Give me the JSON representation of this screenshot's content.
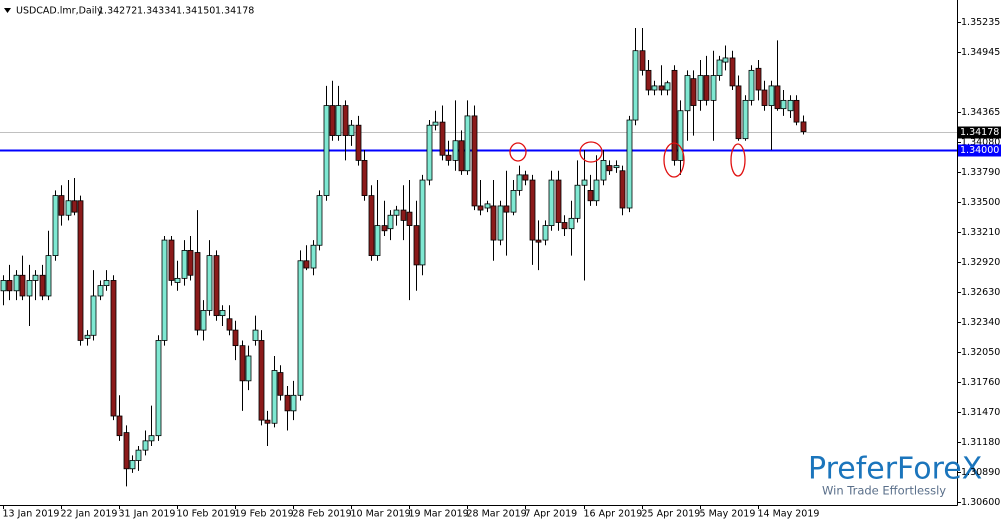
{
  "chart_data": {
    "type": "candlestick",
    "title": "USDCAD.lmr,Daily",
    "ohlc_labels": [
      "1.34272",
      "1.34334",
      "1.34150",
      "1.34178"
    ],
    "categories": [
      "13 Jan 2019",
      null,
      null,
      null,
      null,
      null,
      null,
      null,
      null,
      "22 Jan 2019",
      null,
      null,
      null,
      null,
      null,
      null,
      null,
      null,
      "31 Jan 2019",
      null,
      null,
      null,
      null,
      null,
      null,
      null,
      null,
      "10 Feb 2019",
      null,
      null,
      null,
      null,
      null,
      null,
      null,
      null,
      "19 Feb 2019",
      null,
      null,
      null,
      null,
      null,
      null,
      null,
      null,
      "28 Feb 2019",
      null,
      null,
      null,
      null,
      null,
      null,
      null,
      null,
      "10 Mar 2019",
      null,
      null,
      null,
      null,
      null,
      null,
      null,
      null,
      "19 Mar 2019",
      null,
      null,
      null,
      null,
      null,
      null,
      null,
      null,
      "28 Mar 2019",
      null,
      null,
      null,
      null,
      null,
      null,
      null,
      null,
      "7 Apr 2019",
      null,
      null,
      null,
      null,
      null,
      null,
      null,
      null,
      "16 Apr 2019",
      null,
      null,
      null,
      null,
      null,
      null,
      null,
      null,
      "25 Apr 2019",
      null,
      null,
      null,
      null,
      null,
      null,
      null,
      null,
      "5 May 2019",
      null,
      null,
      null,
      null,
      null,
      null,
      null,
      null,
      "14 May 2019",
      null,
      null,
      null,
      null,
      null,
      null,
      null
    ],
    "open": [
      1.3264,
      1.3274,
      1.3264,
      1.3279,
      1.3259,
      1.3274,
      1.3279,
      1.3259,
      1.3298,
      1.3356,
      1.3337,
      1.3351,
      1.3351,
      1.3218,
      1.3221,
      1.3259,
      1.3269,
      1.3274,
      1.3143,
      1.3127,
      1.3092,
      1.31,
      1.311,
      1.3119,
      1.3124,
      1.3216,
      1.3313,
      1.3272,
      1.3276,
      1.3303,
      1.3301,
      1.3226,
      1.3245,
      1.3298,
      1.324,
      1.3237,
      1.3226,
      1.3211,
      1.3177,
      1.3216,
      1.3216,
      1.3139,
      1.3136,
      1.3185,
      1.3163,
      1.3148,
      1.3163,
      1.3293,
      1.3286,
      1.3308,
      1.3356,
      1.3443,
      1.3414,
      1.3443,
      1.3414,
      1.3424,
      1.339,
      1.3356,
      1.3298,
      1.3327,
      1.3324,
      1.3337,
      1.3342,
      1.334,
      1.3327,
      1.3289,
      1.3371,
      1.3424,
      1.3427,
      1.3395,
      1.339,
      1.3409,
      1.338,
      1.3433,
      1.3346,
      1.3344,
      1.3346,
      1.3313,
      1.3346,
      1.334,
      1.3361,
      1.3376,
      1.3371,
      1.3313,
      1.3313,
      1.3327,
      1.3371,
      1.333,
      1.3324,
      1.3334,
      1.3366,
      1.3361,
      1.3351,
      1.3371,
      1.3385,
      1.3383,
      1.338,
      1.3344,
      1.3429,
      1.3496,
      1.3477,
      1.3458,
      1.3462,
      1.3458,
      1.3477,
      1.339,
      1.3438,
      1.3469,
      1.3448,
      1.3472,
      1.3448,
      1.3472,
      1.3485,
      1.3489,
      1.3462,
      1.3411,
      1.3448,
      1.3479,
      1.3458,
      1.3443,
      1.3462,
      1.344,
      1.3438,
      1.3448,
      1.34272
    ],
    "high": [
      1.3279,
      1.3289,
      1.3284,
      1.3298,
      1.3289,
      1.3284,
      1.3289,
      1.3322,
      1.3361,
      1.3366,
      1.3371,
      1.3373,
      1.3356,
      1.3226,
      1.3284,
      1.3274,
      1.3284,
      1.3279,
      1.3163,
      1.3134,
      1.3105,
      1.3114,
      1.3129,
      1.3153,
      1.3221,
      1.3317,
      1.3317,
      1.3293,
      1.3313,
      1.3317,
      1.3342,
      1.3255,
      1.3313,
      1.3303,
      1.325,
      1.325,
      1.3235,
      1.3216,
      1.3211,
      1.324,
      1.3226,
      1.3148,
      1.3201,
      1.3192,
      1.3172,
      1.3177,
      1.3303,
      1.3308,
      1.3313,
      1.3361,
      1.3462,
      1.3467,
      1.3462,
      1.3448,
      1.3429,
      1.3433,
      1.34,
      1.3366,
      1.3371,
      1.3351,
      1.3342,
      1.3346,
      1.3366,
      1.3371,
      1.3351,
      1.3376,
      1.3429,
      1.3438,
      1.3443,
      1.3409,
      1.3448,
      1.3419,
      1.3448,
      1.3443,
      1.3371,
      1.3351,
      1.3371,
      1.3351,
      1.338,
      1.3371,
      1.3385,
      1.338,
      1.3376,
      1.3332,
      1.3332,
      1.338,
      1.338,
      1.3337,
      1.3351,
      1.339,
      1.34,
      1.3376,
      1.3395,
      1.34,
      1.339,
      1.339,
      1.3385,
      1.3433,
      1.3518,
      1.3518,
      1.3487,
      1.3467,
      1.3482,
      1.3467,
      1.3482,
      1.3448,
      1.3477,
      1.3477,
      1.3487,
      1.3491,
      1.3496,
      1.3491,
      1.3501,
      1.3496,
      1.3472,
      1.3453,
      1.3482,
      1.3487,
      1.3467,
      1.3467,
      1.3506,
      1.3458,
      1.3453,
      1.3453,
      1.34334
    ],
    "low": [
      1.325,
      1.3255,
      1.3255,
      1.3255,
      1.323,
      1.3255,
      1.3255,
      1.3255,
      1.3293,
      1.3327,
      1.3332,
      1.3337,
      1.3211,
      1.3211,
      1.3216,
      1.3255,
      1.3264,
      1.3139,
      1.3119,
      1.3075,
      1.3088,
      1.309,
      1.3105,
      1.3114,
      1.3119,
      1.3211,
      1.3269,
      1.3264,
      1.3269,
      1.3274,
      1.3221,
      1.3216,
      1.324,
      1.3235,
      1.323,
      1.3221,
      1.3197,
      1.3148,
      1.3168,
      1.3211,
      1.3134,
      1.3114,
      1.3132,
      1.3158,
      1.3129,
      1.3139,
      1.3158,
      1.3284,
      1.3279,
      1.3303,
      1.3351,
      1.3409,
      1.3409,
      1.339,
      1.3404,
      1.3385,
      1.3351,
      1.3293,
      1.3293,
      1.3317,
      1.3313,
      1.3327,
      1.3313,
      1.3255,
      1.3264,
      1.3279,
      1.3366,
      1.3419,
      1.339,
      1.3385,
      1.338,
      1.3376,
      1.3376,
      1.3342,
      1.3337,
      1.334,
      1.3293,
      1.3308,
      1.3298,
      1.3337,
      1.3356,
      1.3366,
      1.3289,
      1.3284,
      1.3308,
      1.3322,
      1.3322,
      1.3317,
      1.3298,
      1.333,
      1.3274,
      1.3346,
      1.3346,
      1.3366,
      1.3376,
      1.3378,
      1.3337,
      1.334,
      1.3424,
      1.3472,
      1.3453,
      1.3453,
      1.3453,
      1.3453,
      1.3385,
      1.3376,
      1.3409,
      1.3414,
      1.3438,
      1.3443,
      1.3409,
      1.3467,
      1.3477,
      1.3458,
      1.3409,
      1.3409,
      1.3443,
      1.3448,
      1.3438,
      1.34,
      1.3438,
      1.3433,
      1.3431,
      1.3424,
      1.3415
    ],
    "close": [
      1.3274,
      1.3264,
      1.3279,
      1.3259,
      1.3274,
      1.3279,
      1.3259,
      1.3298,
      1.3356,
      1.3337,
      1.3351,
      1.334,
      1.3216,
      1.3221,
      1.3259,
      1.3269,
      1.3274,
      1.3143,
      1.3124,
      1.3092,
      1.31,
      1.311,
      1.3119,
      1.3124,
      1.3216,
      1.3313,
      1.3274,
      1.3276,
      1.3303,
      1.3279,
      1.3226,
      1.3245,
      1.3298,
      1.324,
      1.3245,
      1.3226,
      1.3211,
      1.3177,
      1.3201,
      1.3226,
      1.3139,
      1.3136,
      1.3187,
      1.3163,
      1.3148,
      1.3163,
      1.3293,
      1.3286,
      1.3308,
      1.3356,
      1.3443,
      1.3414,
      1.3443,
      1.3414,
      1.3424,
      1.339,
      1.3356,
      1.3298,
      1.3327,
      1.3322,
      1.3337,
      1.3342,
      1.3332,
      1.3327,
      1.3289,
      1.3371,
      1.3424,
      1.3427,
      1.3395,
      1.339,
      1.3409,
      1.338,
      1.3433,
      1.3346,
      1.3342,
      1.3348,
      1.3313,
      1.3346,
      1.334,
      1.3361,
      1.3376,
      1.3371,
      1.3313,
      1.3311,
      1.3327,
      1.3371,
      1.333,
      1.3324,
      1.3334,
      1.3366,
      1.3371,
      1.3351,
      1.3371,
      1.339,
      1.338,
      1.3385,
      1.3344,
      1.3429,
      1.3496,
      1.3477,
      1.3458,
      1.3462,
      1.3458,
      1.3465,
      1.339,
      1.3438,
      1.3472,
      1.3443,
      1.3472,
      1.3448,
      1.3472,
      1.3487,
      1.3489,
      1.3462,
      1.3411,
      1.3448,
      1.3477,
      1.3458,
      1.3443,
      1.3462,
      1.344,
      1.3448,
      1.3448,
      1.3427,
      1.34178
    ],
    "up_color": "#7fe8d2",
    "down_color": "#8b1a1a",
    "ylim": [
      1.3057,
      1.3545
    ],
    "yticks": [
      {
        "value": 1.306,
        "label": "1.30600"
      },
      {
        "value": 1.3089,
        "label": "1.30890"
      },
      {
        "value": 1.3118,
        "label": "1.31180"
      },
      {
        "value": 1.3147,
        "label": "1.31470"
      },
      {
        "value": 1.3176,
        "label": "1.31760"
      },
      {
        "value": 1.3205,
        "label": "1.32050"
      },
      {
        "value": 1.3234,
        "label": "1.32340"
      },
      {
        "value": 1.3263,
        "label": "1.32630"
      },
      {
        "value": 1.3292,
        "label": "1.32920"
      },
      {
        "value": 1.3321,
        "label": "1.33210"
      },
      {
        "value": 1.335,
        "label": "1.33500"
      },
      {
        "value": 1.3379,
        "label": "1.33790"
      },
      {
        "value": 1.3408,
        "label": "1.34080"
      },
      1.34365,
      1.34945,
      1.35235
    ],
    "bid_line": {
      "value": 1.34178,
      "color": "#c0c0c0"
    },
    "level_line": {
      "value": 1.34,
      "label": "1.34000",
      "color": "#0000ff"
    },
    "grid": false,
    "watermark": {
      "name": "PreferForeX",
      "tagline": "Win Trade Effortlessly"
    }
  }
}
